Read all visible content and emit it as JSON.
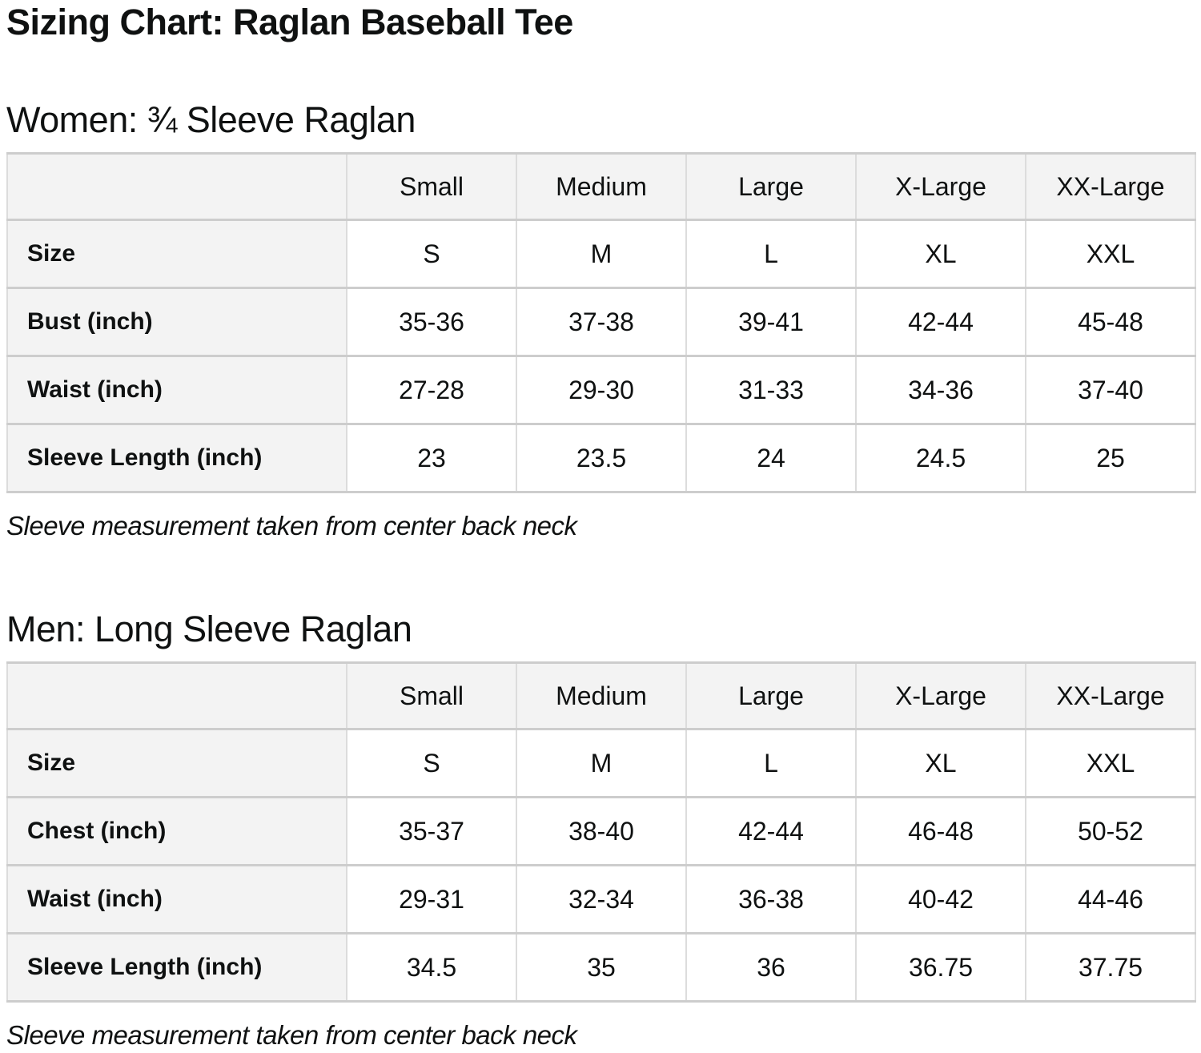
{
  "page": {
    "title": "Sizing Chart: Raglan Baseball Tee"
  },
  "colors": {
    "background": "#ffffff",
    "text": "#0f1111",
    "table_header_bg": "#f3f3f3",
    "border_vertical": "#dcdcdc",
    "border_horizontal": "#cdcdcd"
  },
  "sections": [
    {
      "heading": "Women: ¾ Sleeve Raglan",
      "note": "Sleeve measurement taken from center back neck",
      "table": {
        "columns": [
          "",
          "Small",
          "Medium",
          "Large",
          "X-Large",
          "XX-Large"
        ],
        "rows": [
          {
            "label": "Size",
            "values": [
              "S",
              "M",
              "L",
              "XL",
              "XXL"
            ]
          },
          {
            "label": "Bust (inch)",
            "values": [
              "35-36",
              "37-38",
              "39-41",
              "42-44",
              "45-48"
            ]
          },
          {
            "label": "Waist (inch)",
            "values": [
              "27-28",
              "29-30",
              "31-33",
              "34-36",
              "37-40"
            ]
          },
          {
            "label": "Sleeve Length (inch)",
            "values": [
              "23",
              "23.5",
              "24",
              "24.5",
              "25"
            ]
          }
        ]
      }
    },
    {
      "heading": "Men: Long Sleeve Raglan",
      "note": "Sleeve measurement taken from center back neck",
      "table": {
        "columns": [
          "",
          "Small",
          "Medium",
          "Large",
          "X-Large",
          "XX-Large"
        ],
        "rows": [
          {
            "label": "Size",
            "values": [
              "S",
              "M",
              "L",
              "XL",
              "XXL"
            ]
          },
          {
            "label": "Chest (inch)",
            "values": [
              "35-37",
              "38-40",
              "42-44",
              "46-48",
              "50-52"
            ]
          },
          {
            "label": "Waist (inch)",
            "values": [
              "29-31",
              "32-34",
              "36-38",
              "40-42",
              "44-46"
            ]
          },
          {
            "label": "Sleeve Length (inch)",
            "values": [
              "34.5",
              "35",
              "36",
              "36.75",
              "37.75"
            ]
          }
        ]
      }
    }
  ]
}
